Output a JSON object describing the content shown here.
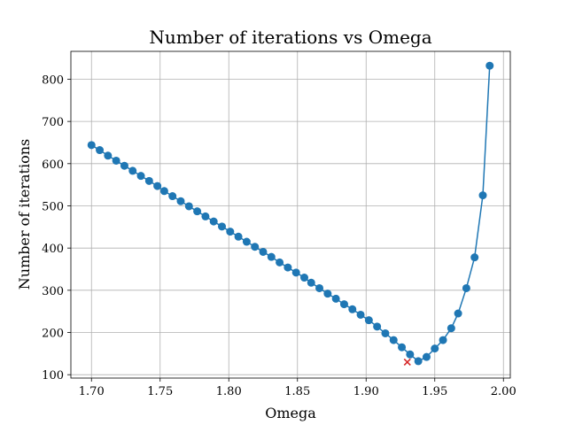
{
  "chart_data": {
    "type": "line",
    "title": "Number of iterations vs Omega",
    "xlabel": "Omega",
    "ylabel": "Number of iterations",
    "xlim": [
      1.685,
      2.005
    ],
    "ylim": [
      92,
      866
    ],
    "xticks": [
      1.7,
      1.75,
      1.8,
      1.85,
      1.9,
      1.95,
      2.0
    ],
    "xtick_labels": [
      "1.70",
      "1.75",
      "1.80",
      "1.85",
      "1.90",
      "1.95",
      "2.00"
    ],
    "yticks": [
      100,
      200,
      300,
      400,
      500,
      600,
      700,
      800
    ],
    "ytick_labels": [
      "100",
      "200",
      "300",
      "400",
      "500",
      "600",
      "700",
      "800"
    ],
    "grid": true,
    "series": [
      {
        "color": "#1f77b4",
        "marker": "circle",
        "x": [
          1.7,
          1.706,
          1.712,
          1.718,
          1.724,
          1.73,
          1.736,
          1.742,
          1.748,
          1.753,
          1.759,
          1.765,
          1.771,
          1.777,
          1.783,
          1.789,
          1.795,
          1.801,
          1.807,
          1.813,
          1.819,
          1.825,
          1.831,
          1.837,
          1.843,
          1.849,
          1.855,
          1.86,
          1.866,
          1.872,
          1.878,
          1.884,
          1.89,
          1.896,
          1.902,
          1.908,
          1.914,
          1.92,
          1.926,
          1.932,
          1.938,
          1.944,
          1.95,
          1.956,
          1.962,
          1.967,
          1.973,
          1.979,
          1.985,
          1.99
        ],
        "y": [
          644,
          632,
          619,
          607,
          595,
          583,
          571,
          559,
          547,
          535,
          523,
          511,
          499,
          487,
          475,
          463,
          451,
          439,
          427,
          415,
          403,
          391,
          379,
          366,
          354,
          342,
          330,
          318,
          305,
          292,
          280,
          267,
          255,
          242,
          229,
          214,
          198,
          182,
          165,
          148,
          132,
          142,
          162,
          182,
          210,
          245,
          305,
          378,
          525,
          832
        ]
      }
    ],
    "highlight": {
      "x": 1.93,
      "y": 130,
      "color": "#d62728",
      "marker": "x"
    }
  }
}
